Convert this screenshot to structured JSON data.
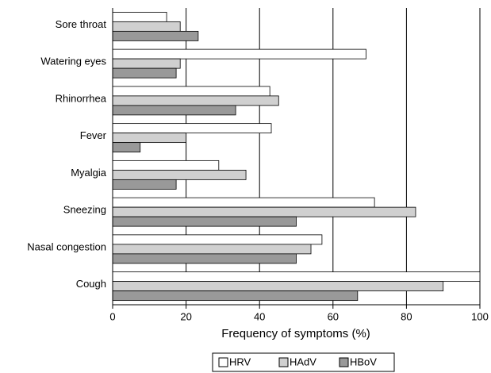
{
  "chart_data": {
    "type": "hbar",
    "categories": [
      "Sore throat",
      "Watering eyes",
      "Rhinorrhea",
      "Fever",
      "Myalgia",
      "Sneezing",
      "Nasal congestion",
      "Cough"
    ],
    "series": [
      {
        "name": "HRV",
        "color": "#ffffff",
        "values": [
          14.7,
          69,
          42.8,
          43.2,
          28.9,
          71.3,
          57,
          100
        ]
      },
      {
        "name": "HAdV",
        "color": "#d0d0d0",
        "values": [
          18.4,
          18.4,
          45.2,
          20,
          36.3,
          82.5,
          54,
          90
        ]
      },
      {
        "name": "HBoV",
        "color": "#999999",
        "values": [
          23.3,
          17.3,
          33.5,
          7.5,
          17.3,
          50,
          50,
          66.7
        ]
      }
    ],
    "x_label": "Frequency of symptoms (%)",
    "xlim": [
      0,
      100
    ],
    "xticks": [
      0,
      20,
      40,
      60,
      80,
      100
    ],
    "grid": true,
    "legend": "bottom"
  }
}
